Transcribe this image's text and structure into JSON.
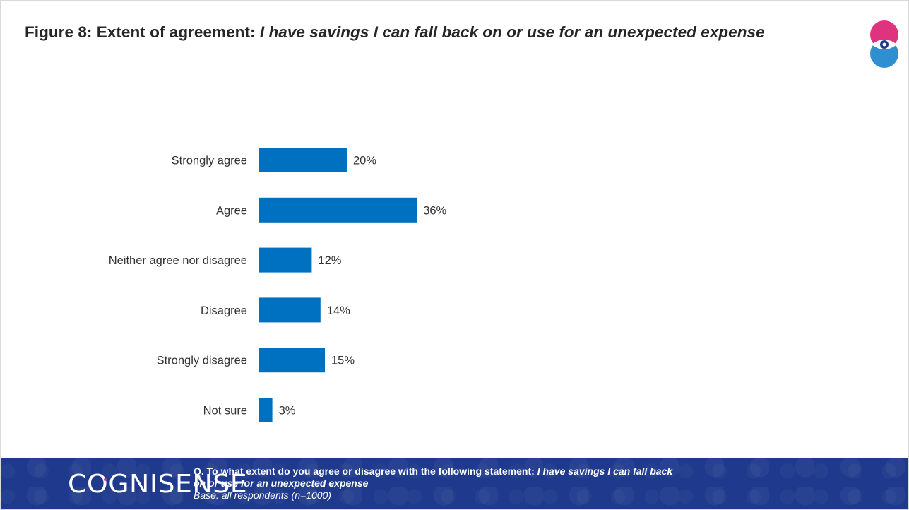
{
  "title": {
    "prefix": "Figure 8: Extent of agreement: ",
    "statement": "I have savings I can fall back on or use for an unexpected expense"
  },
  "footer": {
    "brand": "COGNISENSE",
    "question_prefix": "Q. To what extent do you agree or disagree with the following statement: ",
    "question_statement_line1": "I have savings I can fall back",
    "question_statement_line2": "on or use for an unexpected expense",
    "base": "Base: all respondents (n=1000)"
  },
  "colors": {
    "bar": "#0070c0",
    "footer_bg": "#1f3a8c",
    "logo_pink": "#e0337f",
    "logo_blue": "#2f8fd0",
    "text": "#262626"
  },
  "chart_data": {
    "type": "bar",
    "orientation": "horizontal",
    "title": "Figure 8: Extent of agreement: I have savings I can fall back on or use for an unexpected expense",
    "categories": [
      "Strongly agree",
      "Agree",
      "Neither agree nor disagree",
      "Disagree",
      "Strongly disagree",
      "Not sure"
    ],
    "values": [
      20,
      36,
      12,
      14,
      15,
      3
    ],
    "value_labels": [
      "20%",
      "36%",
      "12%",
      "14%",
      "15%",
      "3%"
    ],
    "unit": "%",
    "xlim": [
      0,
      100
    ],
    "grid": false,
    "legend": "none"
  }
}
